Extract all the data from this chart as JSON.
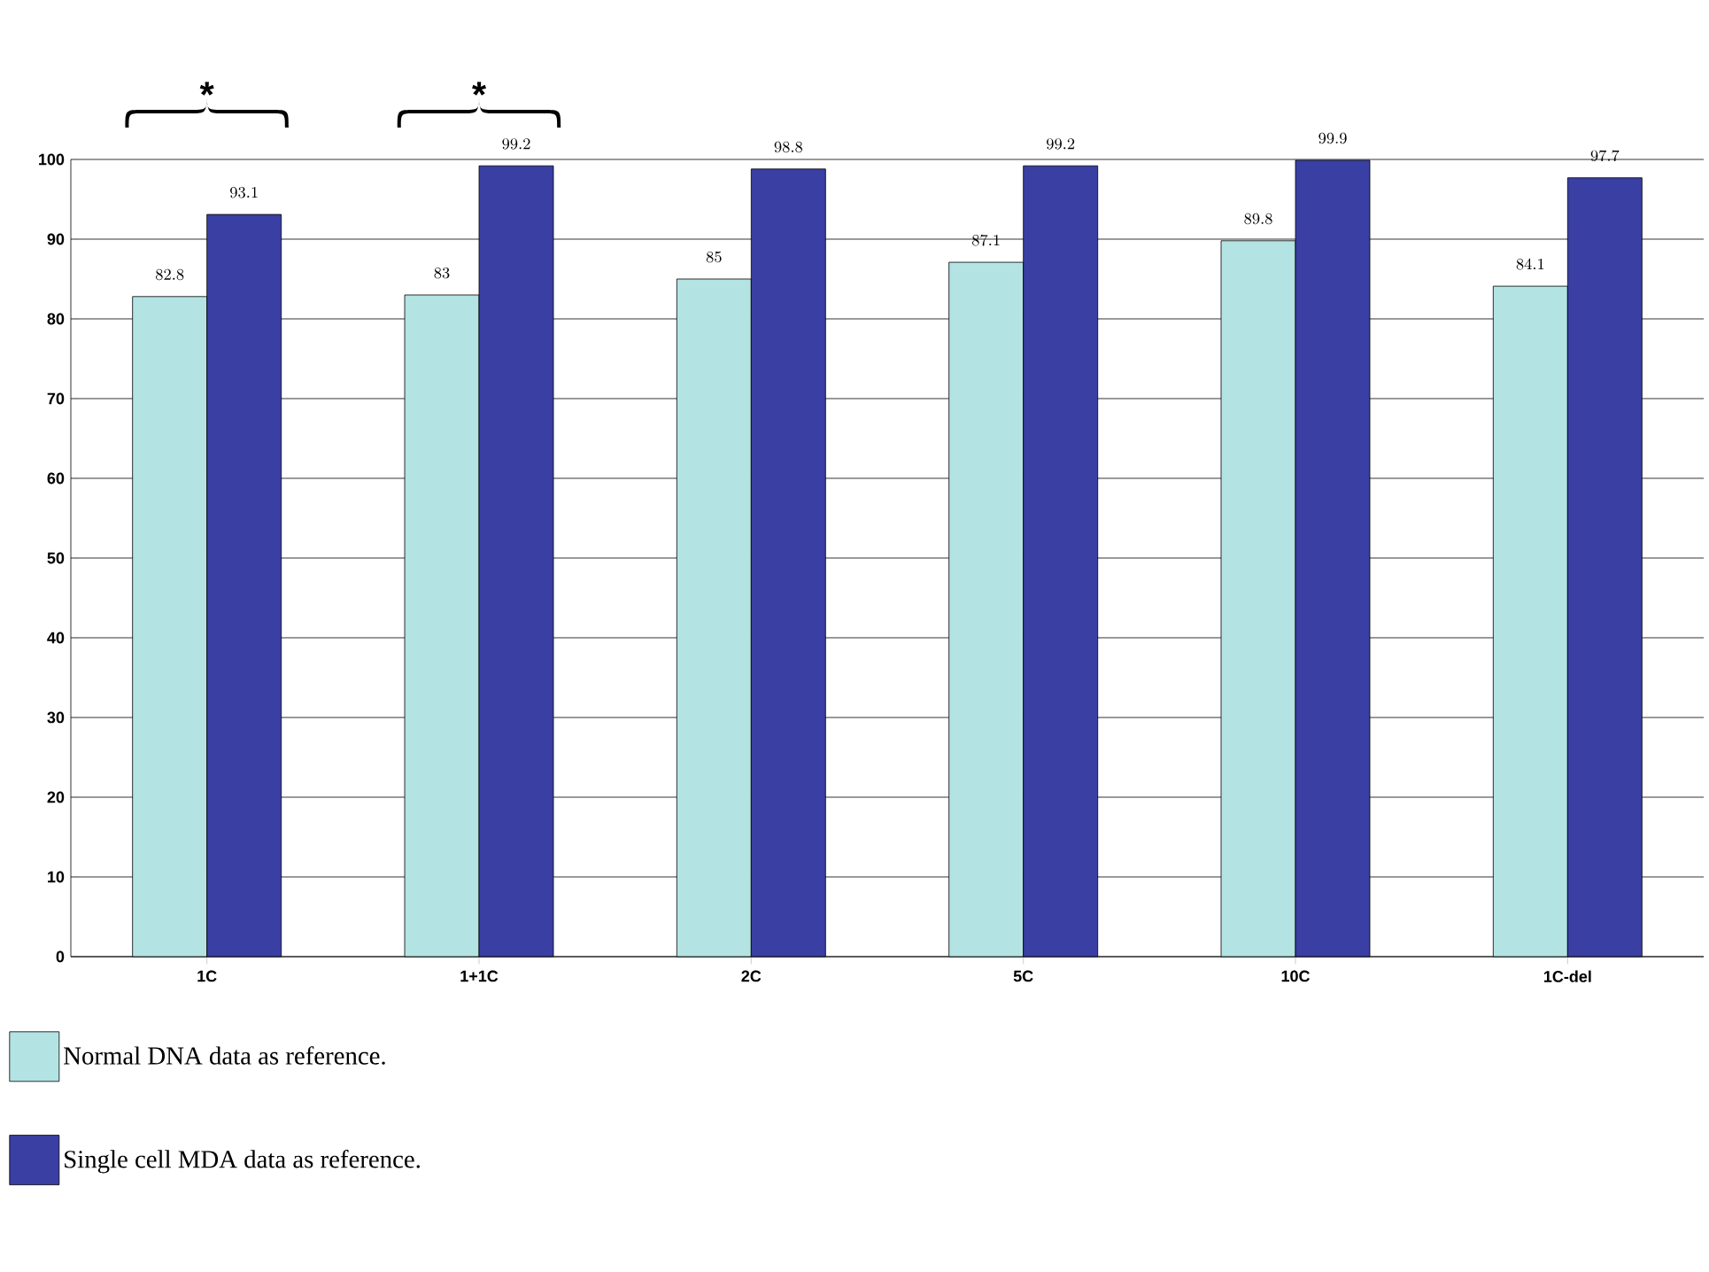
{
  "chart_data": {
    "type": "bar",
    "categories": [
      "1C",
      "1+1C",
      "2C",
      "5C",
      "10C",
      "1C-del"
    ],
    "series": [
      {
        "name": "Normal DNA data as reference.",
        "color": "#b3e3e3",
        "values": [
          82.8,
          83,
          85,
          87.1,
          89.8,
          84.1
        ]
      },
      {
        "name": "Single cell MDA data as reference.",
        "color": "#3a3fa3",
        "values": [
          93.1,
          99.2,
          98.8,
          99.2,
          99.9,
          97.7
        ]
      }
    ],
    "ylim": [
      0,
      100
    ],
    "yticks": [
      0,
      10,
      20,
      30,
      40,
      50,
      60,
      70,
      80,
      90,
      100
    ],
    "grid": "y",
    "legend": "bottom",
    "data_labels": true,
    "annotations": [
      "*",
      "*"
    ]
  }
}
